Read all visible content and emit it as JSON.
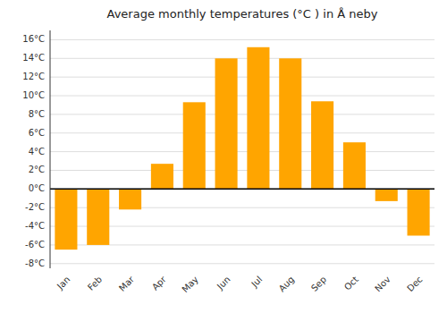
{
  "chart_data": {
    "type": "bar",
    "title": "Average monthly temperatures (°C ) in Å neby",
    "categories": [
      "Jan",
      "Feb",
      "Mar",
      "Apr",
      "May",
      "Jun",
      "Jul",
      "Aug",
      "Sep",
      "Oct",
      "Nov",
      "Dec"
    ],
    "values": [
      -6.5,
      -6.0,
      -2.2,
      2.7,
      9.3,
      14.0,
      15.2,
      14.0,
      9.4,
      5.0,
      -1.3,
      -5.0
    ],
    "color": "#FFA500",
    "ylim": [
      -8.5,
      17
    ],
    "yticks": [
      {
        "value": -8,
        "label": "-8°C"
      },
      {
        "value": -6,
        "label": "-6°C"
      },
      {
        "value": -4,
        "label": "-4°C"
      },
      {
        "value": -2,
        "label": "-2°C"
      },
      {
        "value": 0,
        "label": "0°C"
      },
      {
        "value": 2,
        "label": "2°C"
      },
      {
        "value": 4,
        "label": "4°C"
      },
      {
        "value": 6,
        "label": "6°C"
      },
      {
        "value": 8,
        "label": "8°C"
      },
      {
        "value": 10,
        "label": "10°C"
      },
      {
        "value": 12,
        "label": "12°C"
      },
      {
        "value": 14,
        "label": "14°C"
      },
      {
        "value": 16,
        "label": "16°C"
      }
    ],
    "grid": true
  }
}
